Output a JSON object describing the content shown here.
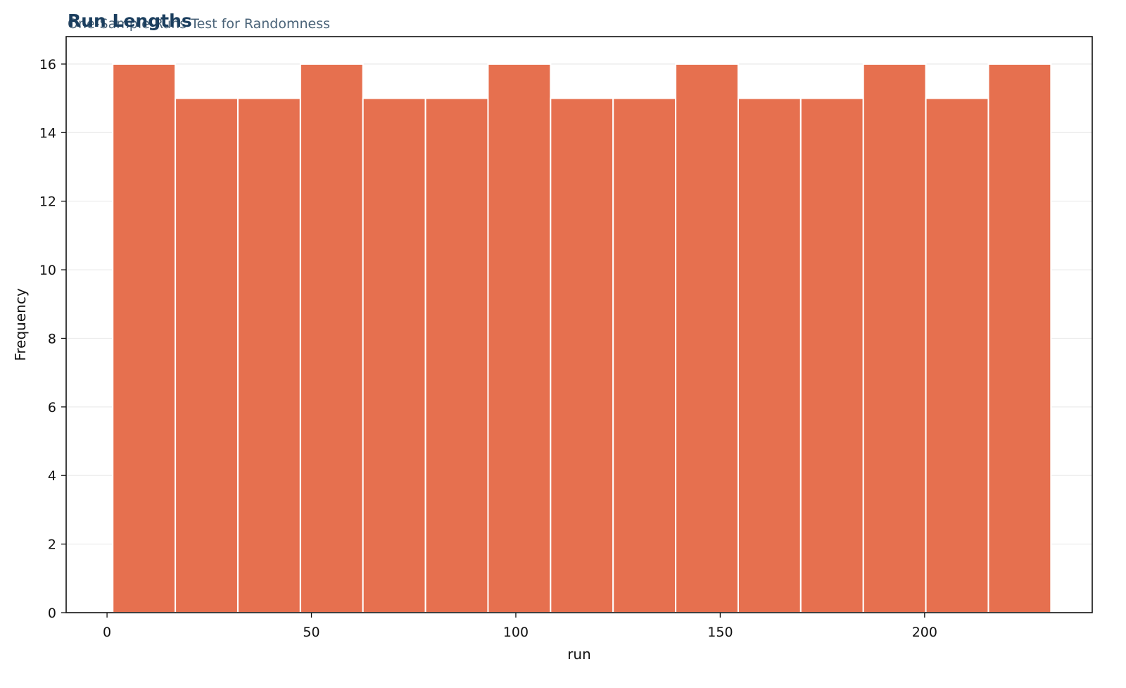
{
  "chart_data": {
    "type": "bar",
    "title": "Run Lengths",
    "subtitle": "One-Sample Runs Test for Randomness",
    "xlabel": "run",
    "ylabel": "Frequency",
    "bin_edges": [
      1.4,
      16.7,
      32.0,
      47.3,
      62.6,
      77.9,
      93.2,
      108.5,
      123.8,
      139.1,
      154.4,
      169.7,
      185.0,
      200.3,
      215.6,
      230.9
    ],
    "values": [
      16,
      15,
      15,
      16,
      15,
      15,
      16,
      15,
      15,
      16,
      15,
      15,
      16,
      15,
      16
    ],
    "xlim": [
      -10,
      241
    ],
    "ylim": [
      0,
      16.8
    ],
    "xticks": [
      0,
      50,
      100,
      150,
      200
    ],
    "yticks": [
      0,
      2,
      4,
      6,
      8,
      10,
      12,
      14,
      16
    ],
    "grid": "horizontal",
    "bar_color": "#e6704f",
    "title_color": "#1b3e5e",
    "subtitle_color": "#4a6378"
  }
}
